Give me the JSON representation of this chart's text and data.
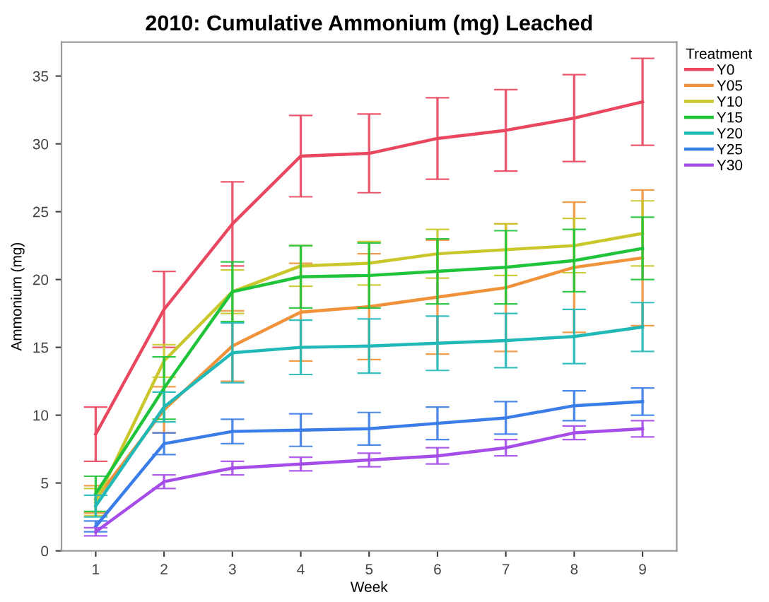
{
  "chart_data": {
    "type": "line",
    "title": "2010: Cumulative Ammonium (mg) Leached",
    "xlabel": "Week",
    "ylabel": "Ammonium (mg)",
    "legend_title": "Treatment",
    "legend": "right",
    "grid": false,
    "x": [
      1,
      2,
      3,
      4,
      5,
      6,
      7,
      8,
      9
    ],
    "xlim": [
      0.5,
      9.5
    ],
    "xticks": [
      1,
      2,
      3,
      4,
      5,
      6,
      7,
      8,
      9
    ],
    "ylim": [
      0,
      37.5
    ],
    "yticks": [
      0,
      5,
      10,
      15,
      20,
      25,
      30,
      35
    ],
    "series": [
      {
        "name": "Y0",
        "color": "#e8475f",
        "values": [
          8.6,
          17.8,
          24.1,
          29.1,
          29.3,
          30.4,
          31.0,
          31.9,
          33.1
        ],
        "errors": [
          2.0,
          2.8,
          3.1,
          3.0,
          2.9,
          3.0,
          3.0,
          3.2,
          3.2
        ]
      },
      {
        "name": "Y05",
        "color": "#f0923a",
        "values": [
          3.8,
          10.4,
          15.1,
          17.6,
          18.0,
          18.7,
          19.4,
          20.9,
          21.6
        ],
        "errors": [
          1.0,
          1.7,
          2.6,
          3.6,
          3.9,
          4.2,
          4.7,
          4.8,
          5.0
        ]
      },
      {
        "name": "Y10",
        "color": "#c9c72c",
        "values": [
          3.6,
          14.0,
          19.1,
          21.0,
          21.2,
          21.9,
          22.2,
          22.5,
          23.4
        ],
        "errors": [
          1.0,
          1.2,
          1.6,
          1.5,
          1.6,
          1.8,
          1.9,
          2.0,
          2.4
        ]
      },
      {
        "name": "Y15",
        "color": "#1fc43a",
        "values": [
          4.2,
          12.0,
          19.1,
          20.2,
          20.3,
          20.6,
          20.9,
          21.4,
          22.3
        ],
        "errors": [
          1.3,
          2.3,
          2.2,
          2.3,
          2.4,
          2.4,
          2.7,
          2.3,
          2.3
        ]
      },
      {
        "name": "Y20",
        "color": "#21b8b8",
        "values": [
          3.3,
          10.6,
          14.6,
          15.0,
          15.1,
          15.3,
          15.5,
          15.8,
          16.5
        ],
        "errors": [
          0.8,
          1.1,
          2.2,
          2.0,
          2.0,
          2.0,
          2.0,
          2.0,
          1.8
        ]
      },
      {
        "name": "Y25",
        "color": "#3b7de8",
        "values": [
          1.8,
          7.9,
          8.8,
          8.9,
          9.0,
          9.4,
          9.8,
          10.7,
          11.0
        ],
        "errors": [
          0.4,
          0.8,
          0.9,
          1.2,
          1.2,
          1.2,
          1.2,
          1.1,
          1.0
        ]
      },
      {
        "name": "Y30",
        "color": "#a54de8",
        "values": [
          1.4,
          5.1,
          6.1,
          6.4,
          6.7,
          7.0,
          7.6,
          8.7,
          9.0
        ],
        "errors": [
          0.3,
          0.5,
          0.5,
          0.5,
          0.5,
          0.6,
          0.6,
          0.5,
          0.6
        ]
      }
    ]
  }
}
